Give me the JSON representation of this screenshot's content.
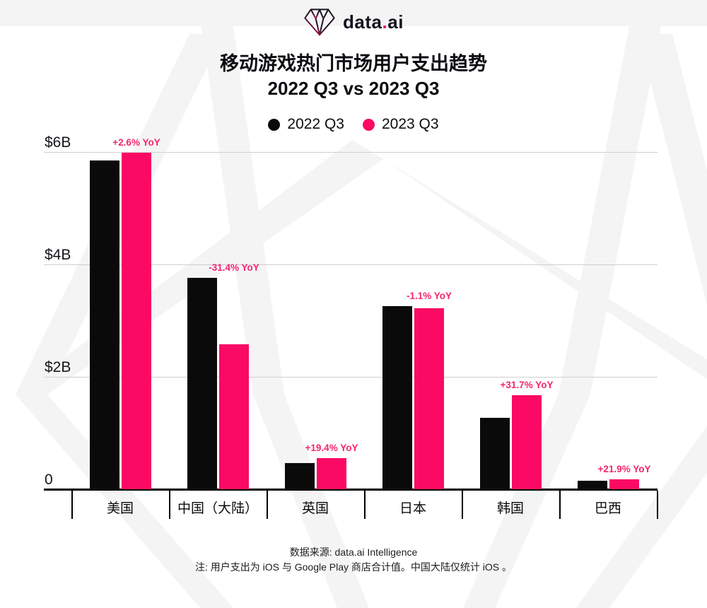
{
  "header": {
    "logo_word": "data",
    "logo_dot": ".",
    "logo_suffix": "ai"
  },
  "title": {
    "line1": "移动游戏热门市场用户支出趋势",
    "line2": "2022 Q3 vs 2023 Q3"
  },
  "legend": {
    "items": [
      {
        "label": "2022 Q3",
        "color": "#0a0a0a"
      },
      {
        "label": "2023 Q3",
        "color": "#fa0a64"
      }
    ]
  },
  "chart_data": {
    "type": "bar",
    "title": "移动游戏热门市场用户支出趋势 2022 Q3 vs 2023 Q3",
    "unit": "USD billions per quarter",
    "categories": [
      "美国",
      "中国（大陆）",
      "英国",
      "日本",
      "韩国",
      "巴西"
    ],
    "series": [
      {
        "name": "2022 Q3",
        "color": "#0a0a0a",
        "values": [
          5.85,
          3.76,
          0.46,
          3.26,
          1.27,
          0.15
        ]
      },
      {
        "name": "2023 Q3",
        "color": "#fa0a64",
        "values": [
          5.99,
          2.58,
          0.55,
          3.22,
          1.67,
          0.18
        ]
      }
    ],
    "yoy_labels": [
      "+2.6% YoY",
      "-31.4% YoY",
      "+19.4% YoY",
      "-1.1% YoY",
      "+31.7% YoY",
      "+21.9% YoY"
    ],
    "ylim": [
      0,
      6.2
    ],
    "yticks": [
      {
        "label": "$6B",
        "value": 6
      },
      {
        "label": "$4B",
        "value": 4
      },
      {
        "label": "$2B",
        "value": 2
      },
      {
        "label": "0",
        "value": 0
      }
    ],
    "grid": "horizontal",
    "legend_position": "top"
  },
  "footer": {
    "source": "数据来源: data.ai Intelligence",
    "note": "注: 用户支出为 iOS 与 Google Play 商店合计值。中国大陆仅统计 iOS 。"
  },
  "colors": {
    "bar_2022": "#0a0a0a",
    "bar_2023": "#fa0a64",
    "yoy_text": "#f5246f",
    "gridline": "#cfcfcf",
    "watermark": "#f4f4f4",
    "logo_pink": "#ef0f63",
    "logo_dark": "#1b1525"
  }
}
